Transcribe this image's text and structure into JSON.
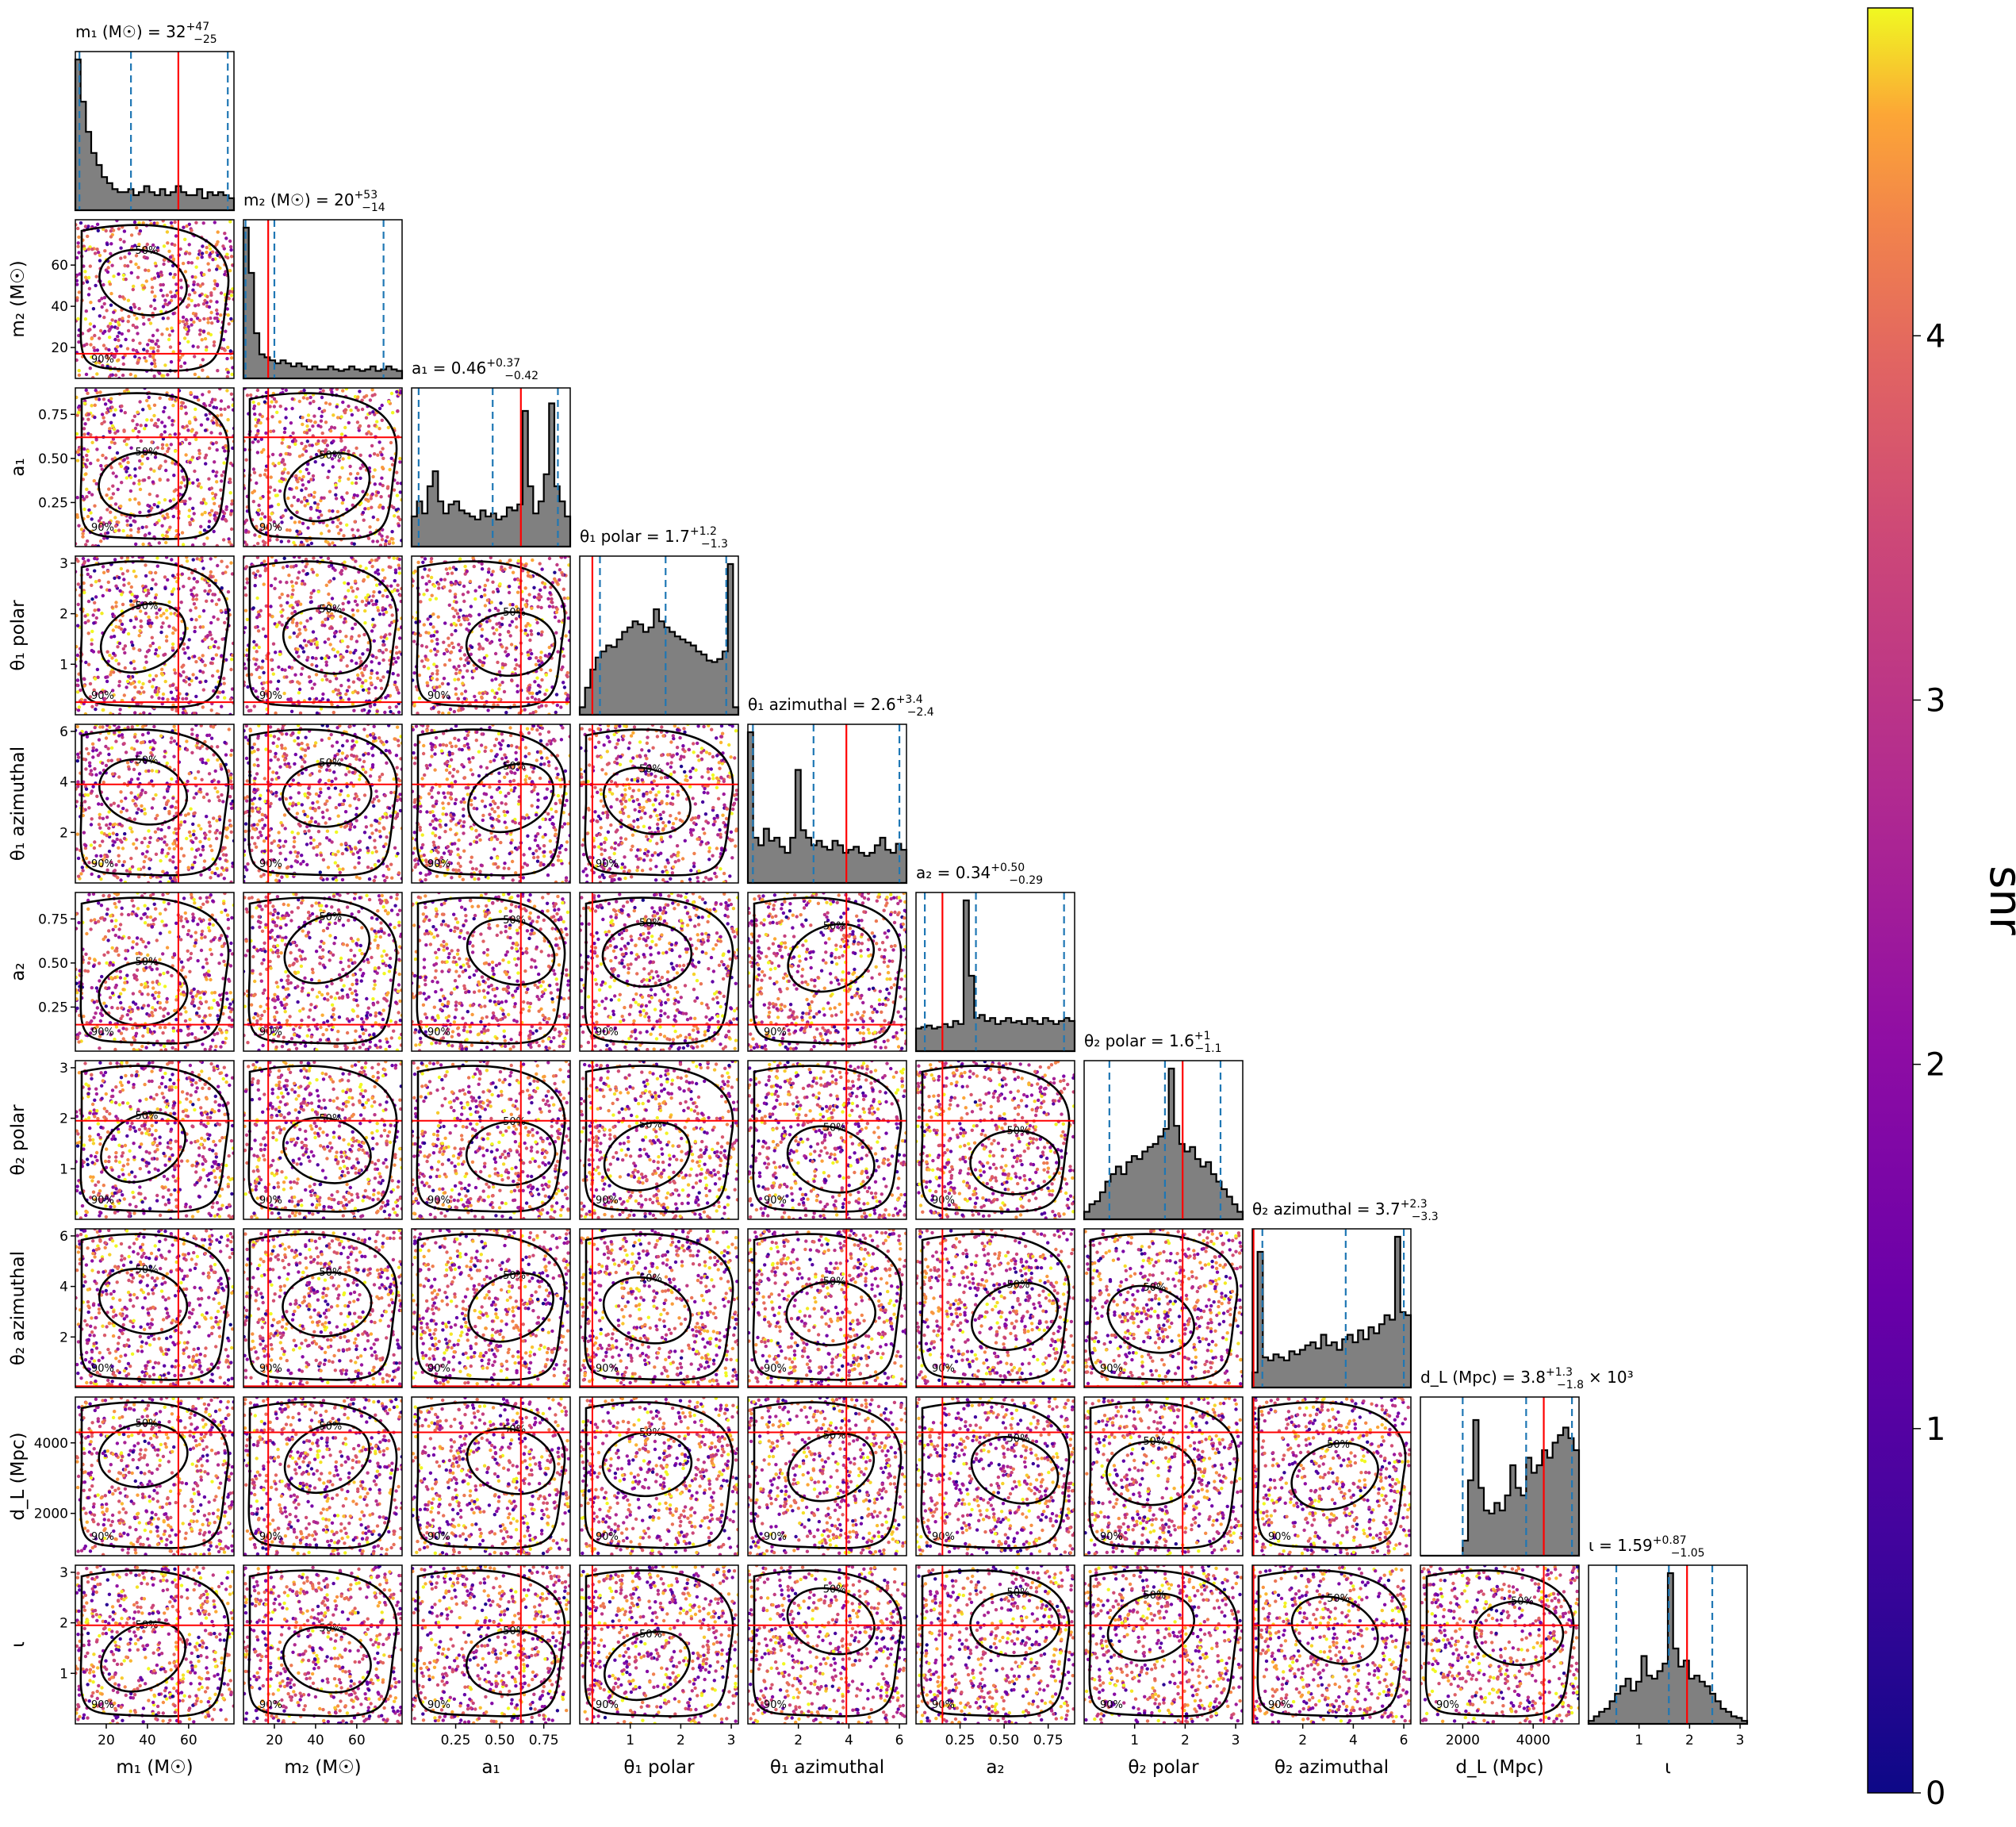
{
  "chart_data": {
    "type": "scatter",
    "title": "",
    "colorbar": {
      "label": "snr",
      "colormap": "plasma",
      "range": [
        0,
        4.9
      ],
      "ticks": [
        "0",
        "1",
        "2",
        "3",
        "4"
      ]
    },
    "contour_labels": [
      "50%",
      "90%"
    ],
    "colors": {
      "histogram": "#808080",
      "truth_line": "#ff0000",
      "quantile_line": "#1f77b4",
      "contour": "#000000"
    },
    "parameters": [
      {
        "key": "m1",
        "axis_label": "m₁ (M☉)",
        "summary": "m₁ (M☉) = 32",
        "summary_sup": "+47",
        "summary_sub": "−25",
        "range": [
          5,
          82
        ],
        "truth": 55,
        "quantiles": [
          7,
          32,
          79
        ],
        "ticks": [
          20,
          40,
          60
        ],
        "tick_labels": [
          "20",
          "40",
          "60"
        ],
        "hist": [
          1.0,
          0.72,
          0.52,
          0.38,
          0.3,
          0.22,
          0.18,
          0.14,
          0.12,
          0.12,
          0.14,
          0.1,
          0.12,
          0.16,
          0.12,
          0.1,
          0.14,
          0.1,
          0.12,
          0.16,
          0.12,
          0.1,
          0.1,
          0.14,
          0.08,
          0.12,
          0.1,
          0.12,
          0.1,
          0.08
        ]
      },
      {
        "key": "m2",
        "axis_label": "m₂ (M☉)",
        "summary": "m₂ (M☉) = 20",
        "summary_sup": "+53",
        "summary_sub": "−14",
        "range": [
          5,
          82
        ],
        "truth": 17,
        "quantiles": [
          6,
          20,
          73
        ],
        "ticks": [
          20,
          40,
          60
        ],
        "tick_labels": [
          "20",
          "40",
          "60"
        ],
        "hist": [
          1.0,
          0.7,
          0.3,
          0.16,
          0.14,
          0.12,
          0.1,
          0.12,
          0.1,
          0.08,
          0.1,
          0.08,
          0.06,
          0.08,
          0.06,
          0.06,
          0.08,
          0.06,
          0.05,
          0.06,
          0.08,
          0.06,
          0.05,
          0.06,
          0.08,
          0.05,
          0.06,
          0.08,
          0.06,
          0.05
        ]
      },
      {
        "key": "a1",
        "axis_label": "a₁",
        "summary": "a₁ = 0.46",
        "summary_sup": "+0.37",
        "summary_sub": "−0.42",
        "range": [
          0.0,
          0.9
        ],
        "truth": 0.62,
        "quantiles": [
          0.04,
          0.46,
          0.83
        ],
        "ticks": [
          0.25,
          0.5,
          0.75
        ],
        "tick_labels": [
          "0.25",
          "0.50",
          "0.75"
        ],
        "hist": [
          0.2,
          0.3,
          0.22,
          0.4,
          0.5,
          0.3,
          0.22,
          0.28,
          0.3,
          0.24,
          0.22,
          0.2,
          0.18,
          0.24,
          0.2,
          0.22,
          0.18,
          0.2,
          0.26,
          0.24,
          0.28,
          0.9,
          0.4,
          0.22,
          0.3,
          0.48,
          0.95,
          0.4,
          0.3,
          0.2
        ]
      },
      {
        "key": "theta1_polar",
        "axis_label": "θ₁ polar",
        "summary": "θ₁ polar = 1.7",
        "summary_sup": "+1.2",
        "summary_sub": "−1.3",
        "range": [
          0.0,
          3.14
        ],
        "truth": 0.25,
        "quantiles": [
          0.4,
          1.7,
          2.9
        ],
        "ticks": [
          1,
          2,
          3
        ],
        "tick_labels": [
          "1",
          "2",
          "3"
        ],
        "hist": [
          0.05,
          0.18,
          0.3,
          0.38,
          0.42,
          0.46,
          0.45,
          0.5,
          0.55,
          0.58,
          0.62,
          0.6,
          0.55,
          0.58,
          0.7,
          0.62,
          0.58,
          0.55,
          0.52,
          0.5,
          0.48,
          0.46,
          0.42,
          0.4,
          0.36,
          0.35,
          0.37,
          0.42,
          1.0,
          0.05
        ]
      },
      {
        "key": "theta1_azimuthal",
        "axis_label": "θ₁ azimuthal",
        "summary": "θ₁ azimuthal = 2.6",
        "summary_sup": "+3.4",
        "summary_sub": "−2.4",
        "range": [
          0.0,
          6.28
        ],
        "truth": 3.9,
        "quantiles": [
          0.2,
          2.6,
          6.0
        ],
        "ticks": [
          2,
          4,
          6
        ],
        "tick_labels": [
          "2",
          "4",
          "6"
        ],
        "hist": [
          1.0,
          0.3,
          0.25,
          0.36,
          0.28,
          0.3,
          0.24,
          0.2,
          0.3,
          0.75,
          0.35,
          0.3,
          0.25,
          0.28,
          0.24,
          0.22,
          0.28,
          0.25,
          0.2,
          0.22,
          0.24,
          0.2,
          0.18,
          0.2,
          0.25,
          0.3,
          0.22,
          0.2,
          0.26,
          0.22
        ]
      },
      {
        "key": "a2",
        "axis_label": "a₂",
        "summary": "a₂ = 0.34",
        "summary_sup": "+0.50",
        "summary_sub": "−0.29",
        "range": [
          0.0,
          0.9
        ],
        "truth": 0.15,
        "quantiles": [
          0.05,
          0.34,
          0.84
        ],
        "ticks": [
          0.25,
          0.5,
          0.75
        ],
        "tick_labels": [
          "0.25",
          "0.50",
          "0.75"
        ],
        "hist": [
          0.15,
          0.16,
          0.17,
          0.15,
          0.16,
          0.18,
          0.16,
          0.2,
          0.18,
          1.0,
          0.5,
          0.22,
          0.24,
          0.2,
          0.22,
          0.18,
          0.2,
          0.22,
          0.19,
          0.2,
          0.18,
          0.22,
          0.2,
          0.18,
          0.22,
          0.2,
          0.18,
          0.2,
          0.22,
          0.2
        ]
      },
      {
        "key": "theta2_polar",
        "axis_label": "θ₂ polar",
        "summary": "θ₂ polar = 1.6",
        "summary_sup": "+1",
        "summary_sub": "−1.1",
        "range": [
          0.0,
          3.14
        ],
        "truth": 1.95,
        "quantiles": [
          0.5,
          1.6,
          2.7
        ],
        "ticks": [
          1,
          2,
          3
        ],
        "tick_labels": [
          "1",
          "2",
          "3"
        ],
        "hist": [
          0.05,
          0.1,
          0.12,
          0.18,
          0.25,
          0.3,
          0.35,
          0.3,
          0.38,
          0.42,
          0.4,
          0.45,
          0.48,
          0.5,
          0.55,
          0.6,
          1.0,
          0.62,
          0.5,
          0.45,
          0.48,
          0.4,
          0.35,
          0.38,
          0.3,
          0.25,
          0.2,
          0.15,
          0.1,
          0.05
        ]
      },
      {
        "key": "theta2_azimuthal",
        "axis_label": "θ₂ azimuthal",
        "summary": "θ₂ azimuthal = 3.7",
        "summary_sup": "+2.3",
        "summary_sub": "−3.3",
        "range": [
          0.0,
          6.28
        ],
        "truth": 0.05,
        "quantiles": [
          0.4,
          3.7,
          6.0
        ],
        "ticks": [
          2,
          4,
          6
        ],
        "tick_labels": [
          "2",
          "4",
          "6"
        ],
        "hist": [
          0.1,
          0.9,
          0.2,
          0.18,
          0.22,
          0.2,
          0.18,
          0.24,
          0.22,
          0.25,
          0.28,
          0.3,
          0.26,
          0.35,
          0.28,
          0.3,
          0.25,
          0.32,
          0.35,
          0.3,
          0.38,
          0.32,
          0.4,
          0.36,
          0.42,
          0.48,
          0.45,
          1.0,
          0.5,
          0.48
        ]
      },
      {
        "key": "dL",
        "axis_label": "d_L (Mpc)",
        "summary": "d_L (Mpc) = 3.8",
        "summary_sup": "+1.3",
        "summary_sub": "−1.8",
        "summary_suffix": "× 10³",
        "range": [
          800,
          5300
        ],
        "truth": 4300,
        "quantiles": [
          2000,
          3800,
          5100
        ],
        "ticks": [
          2000,
          4000
        ],
        "tick_labels": [
          "2000",
          "4000"
        ],
        "hist": [
          0,
          0,
          0,
          0,
          0,
          0,
          0,
          0,
          0.1,
          0.5,
          0.9,
          0.45,
          0.3,
          0.28,
          0.35,
          0.3,
          0.4,
          0.6,
          0.45,
          0.4,
          0.65,
          0.55,
          0.6,
          0.7,
          0.65,
          0.75,
          0.8,
          0.85,
          0.78,
          0.7
        ]
      },
      {
        "key": "iota",
        "axis_label": "ι",
        "summary": "ι = 1.59",
        "summary_sup": "+0.87",
        "summary_sub": "−1.05",
        "range": [
          0.0,
          3.14
        ],
        "truth": 1.95,
        "quantiles": [
          0.55,
          1.59,
          2.45
        ],
        "ticks": [
          1,
          2,
          3
        ],
        "tick_labels": [
          "1",
          "2",
          "3"
        ],
        "hist": [
          0.02,
          0.05,
          0.08,
          0.1,
          0.15,
          0.2,
          0.25,
          0.3,
          0.22,
          0.28,
          0.45,
          0.32,
          0.3,
          0.35,
          0.4,
          1.0,
          0.5,
          0.38,
          0.42,
          0.3,
          0.32,
          0.28,
          0.25,
          0.2,
          0.15,
          0.1,
          0.08,
          0.05,
          0.04,
          0.02
        ]
      }
    ]
  }
}
